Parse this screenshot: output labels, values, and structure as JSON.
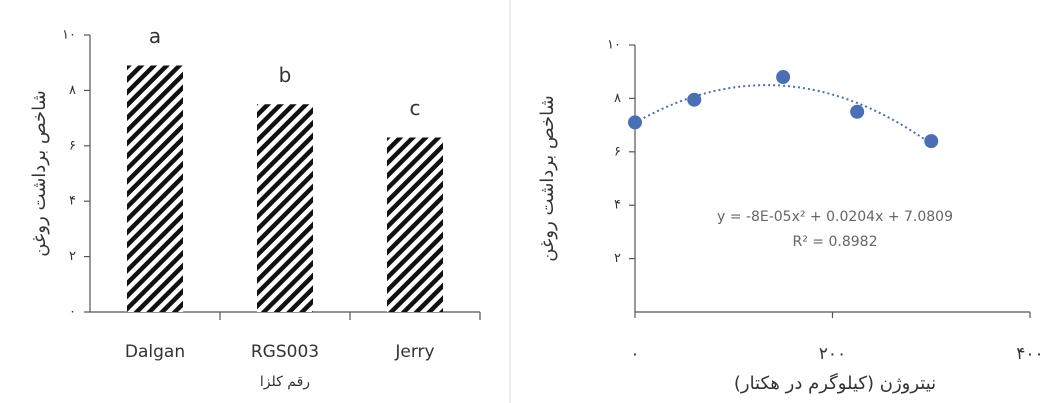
{
  "chart_data": [
    {
      "type": "bar",
      "ylabel": "شاخص برداشت روغن",
      "xlabel": "رقم کلزا",
      "categories": [
        "Dalgan",
        "RGS003",
        "Jerry"
      ],
      "values": [
        8.9,
        7.5,
        6.3
      ],
      "annotations": [
        "a",
        "b",
        "c"
      ],
      "color": "#111111",
      "ylim": [
        0,
        10
      ],
      "yticks": [
        {
          "value": 0,
          "label": "۰"
        },
        {
          "value": 2,
          "label": "۲"
        },
        {
          "value": 4,
          "label": "۴"
        },
        {
          "value": 6,
          "label": "۶"
        },
        {
          "value": 8,
          "label": "۸"
        },
        {
          "value": 10,
          "label": "۱۰"
        }
      ]
    },
    {
      "type": "scatter",
      "ylabel": "شاخص برداشت روغن",
      "xlabel": "نیتروژن (کیلوگرم در هکتار)",
      "x": [
        0,
        60,
        150,
        225,
        300
      ],
      "values": [
        7.1,
        7.95,
        8.8,
        7.5,
        6.4
      ],
      "color": "#4a6fb5",
      "trendline": "polynomial",
      "equation": "y = -8E-05x² + 0.0204x + 7.0809",
      "r_squared": "R² = 0.8982",
      "xlim": [
        0,
        400
      ],
      "ylim": [
        0,
        10
      ],
      "xticks": [
        {
          "value": 0,
          "label": "۰"
        },
        {
          "value": 200,
          "label": "۲۰۰"
        },
        {
          "value": 400,
          "label": "۴۰۰"
        }
      ],
      "yticks": [
        {
          "value": 2,
          "label": "۲"
        },
        {
          "value": 4,
          "label": "۴"
        },
        {
          "value": 6,
          "label": "۶"
        },
        {
          "value": 8,
          "label": "۸"
        },
        {
          "value": 10,
          "label": "۱۰"
        }
      ]
    }
  ]
}
